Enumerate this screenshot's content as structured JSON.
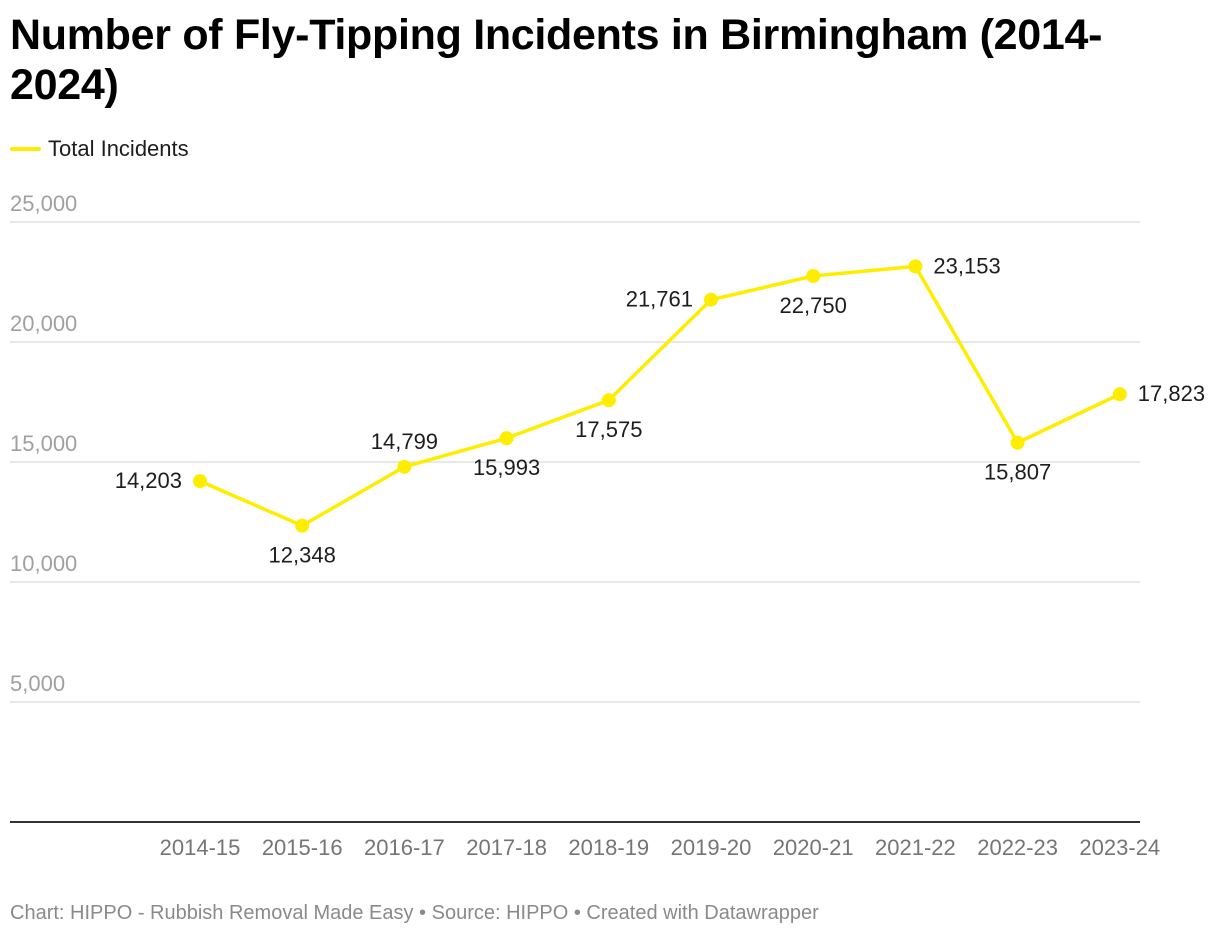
{
  "chart_data": {
    "type": "line",
    "title": "Number of Fly-Tipping Incidents in Birmingham (2014-2024)",
    "categories": [
      "2014-15",
      "2015-16",
      "2016-17",
      "2017-18",
      "2018-19",
      "2019-20",
      "2020-21",
      "2021-22",
      "2022-23",
      "2023-24"
    ],
    "series": [
      {
        "name": "Total Incidents",
        "color": "#ffed00",
        "values": [
          14203,
          12348,
          14799,
          15993,
          17575,
          21761,
          22750,
          23153,
          15807,
          17823
        ],
        "labels": [
          "14,203",
          "12,348",
          "14,799",
          "15,993",
          "17,575",
          "21,761",
          "22,750",
          "23,153",
          "15,807",
          "17,823"
        ],
        "label_positions": [
          "left",
          "below",
          "above",
          "below",
          "below",
          "left",
          "below",
          "right",
          "below",
          "right"
        ]
      }
    ],
    "ylim": [
      0,
      25000
    ],
    "yticks": [
      5000,
      10000,
      15000,
      20000,
      25000
    ],
    "ytick_labels": [
      "5,000",
      "10,000",
      "15,000",
      "20,000",
      "25,000"
    ],
    "xlabel": "",
    "ylabel": "",
    "grid": true,
    "legend_position": "top-left"
  },
  "footer": "Chart: HIPPO - Rubbish Removal Made Easy • Source: HIPPO • Created with Datawrapper",
  "colors": {
    "line": "#ffed00",
    "grid": "#e0e0e0",
    "axis": "#333333",
    "tick_text": "#a0a0a0",
    "x_tick_text": "#757575",
    "label_text": "#1d1d1d"
  }
}
